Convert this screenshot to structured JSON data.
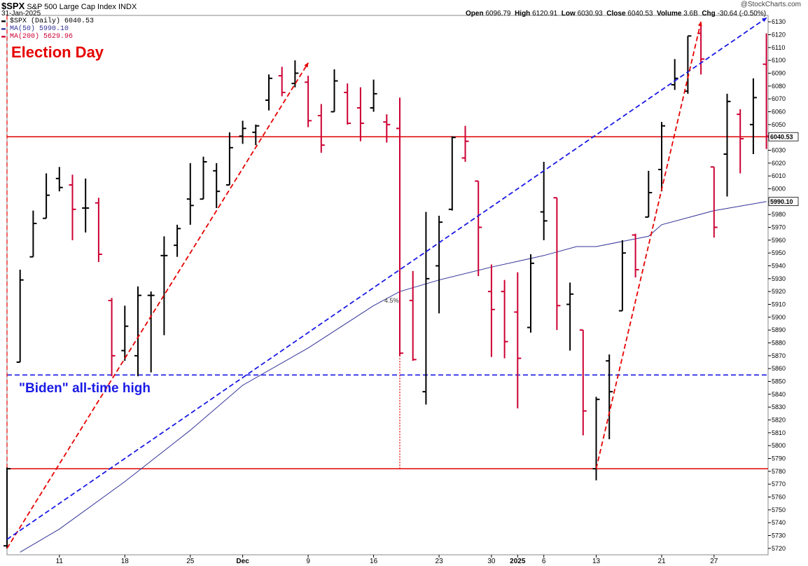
{
  "header": {
    "ticker": "$SPX",
    "index_name": "S&P 500 Large Cap Index",
    "exchange": "INDX",
    "date": "31-Jan-2025",
    "open_label": "Open",
    "open": "6096.79",
    "high_label": "High",
    "high": "6120.91",
    "low_label": "Low",
    "low": "6030.93",
    "close_label": "Close",
    "close": "6040.53",
    "volume_label": "Volume",
    "volume": "3.6B",
    "chg_label": "Chg",
    "chg": "-30.64 (-0.50%)",
    "watermark": "@StockCharts.com"
  },
  "legend": {
    "price_label": "$SPX (Daily) 6040.53",
    "ma50_label": "MA(50) 5990.10",
    "ma200_label": "MA(200) 5629.96"
  },
  "annotations": {
    "election_day": "Election Day",
    "biden_high": "\"Biden\" all-time high",
    "pct_label": "4.5%"
  },
  "price_tags": {
    "close": "6040.53",
    "ma50": "5990.10"
  },
  "colors": {
    "up": "#000000",
    "down": "#cc0033",
    "ma50": "#333399",
    "annotation_red": "#e60000",
    "annotation_blue": "#1a1ae6",
    "horizontal_red": "#dd0000"
  },
  "chart_data": {
    "type": "ohlc",
    "ylim": [
      5715,
      6135
    ],
    "y_ticks": [
      5720,
      5730,
      5740,
      5750,
      5760,
      5770,
      5780,
      5790,
      5800,
      5810,
      5820,
      5830,
      5840,
      5850,
      5860,
      5870,
      5880,
      5890,
      5900,
      5910,
      5920,
      5930,
      5940,
      5950,
      5960,
      5970,
      5980,
      5990,
      6000,
      6010,
      6020,
      6030,
      6040,
      6050,
      6060,
      6070,
      6080,
      6090,
      6100,
      6110,
      6120,
      6130
    ],
    "x_tick_labels": [
      {
        "label": "11",
        "date": "2024-11-11"
      },
      {
        "label": "18",
        "date": "2024-11-18"
      },
      {
        "label": "25",
        "date": "2024-11-25"
      },
      {
        "label": "Dec",
        "date": "2024-12-02"
      },
      {
        "label": "9",
        "date": "2024-12-09"
      },
      {
        "label": "16",
        "date": "2024-12-16"
      },
      {
        "label": "23",
        "date": "2024-12-23"
      },
      {
        "label": "30",
        "date": "2024-12-30"
      },
      {
        "label": "2025",
        "date": "2025-01-02"
      },
      {
        "label": "6",
        "date": "2025-01-06"
      },
      {
        "label": "13",
        "date": "2025-01-13"
      },
      {
        "label": "21",
        "date": "2025-01-21"
      },
      {
        "label": "27",
        "date": "2025-01-27"
      }
    ],
    "bars": [
      {
        "date": "2024-11-05",
        "o": 5722,
        "h": 5783,
        "l": 5720,
        "c": 5782,
        "dir": "up"
      },
      {
        "date": "2024-11-06",
        "o": 5865,
        "h": 5937,
        "l": 5865,
        "c": 5929,
        "dir": "up"
      },
      {
        "date": "2024-11-07",
        "o": 5947,
        "h": 5983,
        "l": 5947,
        "c": 5973,
        "dir": "up"
      },
      {
        "date": "2024-11-08",
        "o": 5977,
        "h": 6012,
        "l": 5977,
        "c": 5995,
        "dir": "up"
      },
      {
        "date": "2024-11-11",
        "o": 6008,
        "h": 6017,
        "l": 5998,
        "c": 6001,
        "dir": "up"
      },
      {
        "date": "2024-11-12",
        "o": 6003,
        "h": 6011,
        "l": 5960,
        "c": 5984,
        "dir": "down"
      },
      {
        "date": "2024-11-13",
        "o": 5985,
        "h": 6008,
        "l": 5966,
        "c": 5985,
        "dir": "up"
      },
      {
        "date": "2024-11-14",
        "o": 5989,
        "h": 5993,
        "l": 5943,
        "c": 5949,
        "dir": "down"
      },
      {
        "date": "2024-11-15",
        "o": 5913,
        "h": 5915,
        "l": 5854,
        "c": 5870,
        "dir": "down"
      },
      {
        "date": "2024-11-18",
        "o": 5874,
        "h": 5909,
        "l": 5866,
        "c": 5893,
        "dir": "up"
      },
      {
        "date": "2024-11-19",
        "o": 5870,
        "h": 5924,
        "l": 5854,
        "c": 5917,
        "dir": "up"
      },
      {
        "date": "2024-11-20",
        "o": 5917,
        "h": 5920,
        "l": 5857,
        "c": 5917,
        "dir": "up"
      },
      {
        "date": "2024-11-21",
        "o": 5948,
        "h": 5963,
        "l": 5886,
        "c": 5948,
        "dir": "up"
      },
      {
        "date": "2024-11-22",
        "o": 5956,
        "h": 5972,
        "l": 5947,
        "c": 5969,
        "dir": "up"
      },
      {
        "date": "2024-11-25",
        "o": 5992,
        "h": 6020,
        "l": 5972,
        "c": 5987,
        "dir": "up"
      },
      {
        "date": "2024-11-26",
        "o": 5992,
        "h": 6025,
        "l": 5992,
        "c": 6021,
        "dir": "up"
      },
      {
        "date": "2024-11-27",
        "o": 6014,
        "h": 6020,
        "l": 5985,
        "c": 5998,
        "dir": "up"
      },
      {
        "date": "2024-11-29",
        "o": 6003,
        "h": 6044,
        "l": 6003,
        "c": 6032,
        "dir": "up"
      },
      {
        "date": "2024-12-02",
        "o": 6041,
        "h": 6053,
        "l": 6035,
        "c": 6047,
        "dir": "up"
      },
      {
        "date": "2024-12-03",
        "o": 6044,
        "h": 6050,
        "l": 6034,
        "c": 6049,
        "dir": "up"
      },
      {
        "date": "2024-12-04",
        "o": 6069,
        "h": 6089,
        "l": 6061,
        "c": 6086,
        "dir": "up"
      },
      {
        "date": "2024-12-05",
        "o": 6088,
        "h": 6095,
        "l": 6072,
        "c": 6075,
        "dir": "down"
      },
      {
        "date": "2024-12-06",
        "o": 6082,
        "h": 6100,
        "l": 6079,
        "c": 6090,
        "dir": "up"
      },
      {
        "date": "2024-12-09",
        "o": 6083,
        "h": 6088,
        "l": 6048,
        "c": 6053,
        "dir": "down"
      },
      {
        "date": "2024-12-10",
        "o": 6057,
        "h": 6066,
        "l": 6028,
        "c": 6034,
        "dir": "down"
      },
      {
        "date": "2024-12-11",
        "o": 6060,
        "h": 6093,
        "l": 6060,
        "c": 6084,
        "dir": "up"
      },
      {
        "date": "2024-12-12",
        "o": 6075,
        "h": 6082,
        "l": 6050,
        "c": 6051,
        "dir": "down"
      },
      {
        "date": "2024-12-13",
        "o": 6063,
        "h": 6079,
        "l": 6037,
        "c": 6051,
        "dir": "down"
      },
      {
        "date": "2024-12-16",
        "o": 6063,
        "h": 6085,
        "l": 6060,
        "c": 6074,
        "dir": "up"
      },
      {
        "date": "2024-12-17",
        "o": 6052,
        "h": 6058,
        "l": 6036,
        "c": 6050,
        "dir": "down"
      },
      {
        "date": "2024-12-18",
        "o": 6047,
        "h": 6071,
        "l": 5870,
        "c": 5872,
        "dir": "down"
      },
      {
        "date": "2024-12-19",
        "o": 5913,
        "h": 5936,
        "l": 5866,
        "c": 5867,
        "dir": "down"
      },
      {
        "date": "2024-12-20",
        "o": 5842,
        "h": 5982,
        "l": 5832,
        "c": 5930,
        "dir": "up"
      },
      {
        "date": "2024-12-23",
        "o": 5940,
        "h": 5979,
        "l": 5903,
        "c": 5974,
        "dir": "up"
      },
      {
        "date": "2024-12-24",
        "o": 5984,
        "h": 6041,
        "l": 5983,
        "c": 6040,
        "dir": "up"
      },
      {
        "date": "2024-12-26",
        "o": 6024,
        "h": 6049,
        "l": 6021,
        "c": 6037,
        "dir": "down"
      },
      {
        "date": "2024-12-27",
        "o": 6006,
        "h": 6006,
        "l": 5932,
        "c": 5970,
        "dir": "down"
      },
      {
        "date": "2024-12-30",
        "o": 5920,
        "h": 5941,
        "l": 5869,
        "c": 5906,
        "dir": "down"
      },
      {
        "date": "2024-12-31",
        "o": 5920,
        "h": 5929,
        "l": 5868,
        "c": 5881,
        "dir": "down"
      },
      {
        "date": "2025-01-02",
        "o": 5904,
        "h": 5935,
        "l": 5829,
        "c": 5868,
        "dir": "down"
      },
      {
        "date": "2025-01-03",
        "o": 5892,
        "h": 5949,
        "l": 5888,
        "c": 5942,
        "dir": "up"
      },
      {
        "date": "2025-01-06",
        "o": 5982,
        "h": 6021,
        "l": 5960,
        "c": 5975,
        "dir": "up"
      },
      {
        "date": "2025-01-07",
        "o": 5993,
        "h": 5993,
        "l": 5890,
        "c": 5909,
        "dir": "down"
      },
      {
        "date": "2025-01-08",
        "o": 5910,
        "h": 5927,
        "l": 5874,
        "c": 5918,
        "dir": "up"
      },
      {
        "date": "2025-01-10",
        "o": 5890,
        "h": 5890,
        "l": 5808,
        "c": 5827,
        "dir": "down"
      },
      {
        "date": "2025-01-13",
        "o": 5782,
        "h": 5838,
        "l": 5773,
        "c": 5836,
        "dir": "up"
      },
      {
        "date": "2025-01-14",
        ":o": 5866,
        "o": 5866,
        "h": 5871,
        "l": 5805,
        "c": 5842,
        "dir": "up"
      },
      {
        "date": "2025-01-15",
        "o": 5905,
        "h": 5960,
        "l": 5905,
        "c": 5950,
        "dir": "up"
      },
      {
        "date": "2025-01-16",
        "o": 5964,
        "h": 5965,
        "l": 5931,
        "c": 5937,
        "dir": "down"
      },
      {
        "date": "2025-01-17",
        "o": 5978,
        "h": 6014,
        "l": 5978,
        "c": 5997,
        "dir": "up"
      },
      {
        "date": "2025-01-21",
        "o": 6015,
        "h": 6052,
        "l": 5998,
        "c": 6049,
        "dir": "up"
      },
      {
        "date": "2025-01-22",
        "o": 6081,
        "h": 6101,
        "l": 6077,
        "c": 6086,
        "dir": "up"
      },
      {
        "date": "2025-01-23",
        "o": 6076,
        "h": 6119,
        "l": 6074,
        "c": 6119,
        "dir": "up"
      },
      {
        "date": "2025-01-24",
        "o": 6121,
        "h": 6129,
        "l": 6089,
        "c": 6101,
        "dir": "down"
      },
      {
        "date": "2025-01-27",
        "o": 6017,
        "h": 6017,
        "l": 5962,
        "c": 5970,
        "dir": "down"
      },
      {
        "date": "2025-01-28",
        "o": 6027,
        "h": 6074,
        "l": 5994,
        "c": 6068,
        "dir": "up"
      },
      {
        "date": "2025-01-29",
        "o": 6058,
        "h": 6062,
        "l": 6012,
        "c": 6039,
        "dir": "down"
      },
      {
        "date": "2025-01-30",
        "o": 6050,
        "h": 6086,
        "l": 6027,
        "c": 6071,
        "dir": "up"
      },
      {
        "date": "2025-01-31",
        "o": 6097,
        "h": 6121,
        "l": 6031,
        "c": 6041,
        "dir": "down"
      }
    ],
    "ma50": {
      "name": "MA(50)",
      "points": [
        [
          "2024-11-06",
          5717
        ],
        [
          "2024-11-11",
          5735
        ],
        [
          "2024-11-18",
          5772
        ],
        [
          "2024-11-25",
          5812
        ],
        [
          "2024-12-02",
          5847
        ],
        [
          "2024-12-09",
          5876
        ],
        [
          "2024-12-16",
          5909
        ],
        [
          "2024-12-18",
          5920
        ],
        [
          "2024-12-23",
          5929
        ],
        [
          "2024-12-30",
          5939
        ],
        [
          "2025-01-06",
          5948
        ],
        [
          "2025-01-09",
          5955
        ],
        [
          "2025-01-13",
          5955
        ],
        [
          "2025-01-17",
          5963
        ],
        [
          "2025-01-21",
          5972
        ],
        [
          "2025-01-27",
          5983
        ],
        [
          "2025-01-31",
          5990
        ]
      ]
    },
    "horizontal_lines": [
      {
        "value": 6040.53,
        "color": "red",
        "style": "solid"
      },
      {
        "value": 5782,
        "color": "red",
        "style": "solid"
      },
      {
        "value": 5855,
        "color": "blue",
        "style": "dashed"
      }
    ],
    "trend_lines": [
      {
        "from": [
          "2024-11-05",
          5720
        ],
        "to": [
          "2024-12-09",
          6098
        ],
        "color": "red",
        "style": "dashed",
        "arrow": true
      },
      {
        "from": [
          "2024-11-05",
          5727
        ],
        "to": [
          "2025-01-31",
          6133
        ],
        "color": "blue",
        "style": "dashed",
        "arrow": true
      },
      {
        "from": [
          "2025-01-13",
          5782
        ],
        "to": [
          "2025-01-24",
          6130
        ],
        "color": "red",
        "style": "dashed",
        "arrow": true
      }
    ],
    "vertical_markers": [
      {
        "date": "2024-11-05",
        "from": 5720,
        "to": 6135,
        "color": "red",
        "style": "dashed"
      },
      {
        "date": "2024-12-18",
        "from": 5782,
        "to": 6040.53,
        "color": "red",
        "style": "dotted"
      }
    ]
  }
}
